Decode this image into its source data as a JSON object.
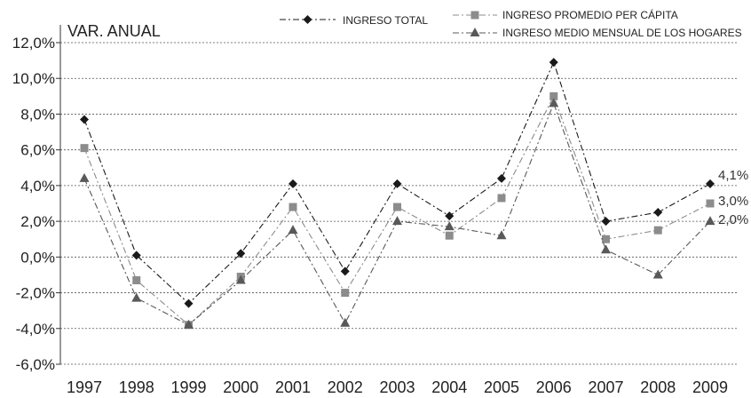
{
  "chart_data": {
    "type": "line",
    "ylabel": "VAR. ANUAL",
    "x": [
      "1997",
      "1998",
      "1999",
      "2000",
      "2001",
      "2002",
      "2003",
      "2004",
      "2005",
      "2006",
      "2007",
      "2008",
      "2009"
    ],
    "y_ticks": [
      "-6,0%",
      "-4,0%",
      "-2,0%",
      "0,0%",
      "2,0%",
      "4,0%",
      "6,0%",
      "8,0%",
      "10,0%",
      "12,0%"
    ],
    "ylim": [
      -6,
      12
    ],
    "grid": "horizontal dashed",
    "legend_position": "top",
    "series": [
      {
        "name": "INGRESO TOTAL",
        "marker": "diamond",
        "color": "#1a1a1a",
        "values": [
          7.7,
          0.1,
          -2.6,
          0.2,
          4.1,
          -0.8,
          4.1,
          2.3,
          4.4,
          10.9,
          2.0,
          2.5,
          4.1
        ],
        "end_label": "4,1%"
      },
      {
        "name": "INGRESO PROMEDIO PER CÁPITA",
        "marker": "square",
        "color": "#8c8c8c",
        "values": [
          6.1,
          -1.3,
          -3.8,
          -1.1,
          2.8,
          -2.0,
          2.8,
          1.2,
          3.3,
          9.0,
          1.0,
          1.5,
          3.0
        ],
        "end_label": "3,0%"
      },
      {
        "name": "INGRESO MEDIO MENSUAL DE LOS HOGARES",
        "marker": "triangle",
        "color": "#595959",
        "values": [
          4.4,
          -2.3,
          -3.8,
          -1.3,
          1.5,
          -3.7,
          2.0,
          1.7,
          1.2,
          8.6,
          0.4,
          -1.0,
          2.0
        ],
        "end_label": "2,0%"
      }
    ]
  }
}
